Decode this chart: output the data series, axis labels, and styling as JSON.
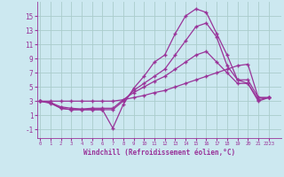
{
  "xlabel": "Windchill (Refroidissement éolien,°C)",
  "bg_color": "#cce8f0",
  "line_color": "#993399",
  "grid_color": "#aacccc",
  "lines": [
    [
      3,
      2.7,
      2,
      1.8,
      1.8,
      1.8,
      1.8,
      -0.8,
      2.5,
      4.8,
      6.5,
      8.5,
      9.5,
      12.5,
      15,
      16,
      15.5,
      12.5,
      9.5,
      6,
      5.5,
      3,
      3.5
    ],
    [
      3,
      2.8,
      2,
      1.8,
      1.8,
      1.8,
      1.8,
      1.8,
      3,
      4.5,
      5.5,
      6.5,
      7.5,
      9.5,
      11.5,
      13.5,
      14,
      12,
      8,
      6,
      6,
      3.5,
      3.5
    ],
    [
      3,
      2.8,
      2.2,
      2.0,
      1.9,
      2.0,
      2.0,
      2.0,
      3.2,
      4.2,
      5.0,
      5.8,
      6.5,
      7.5,
      8.5,
      9.5,
      10.0,
      8.5,
      7.0,
      5.5,
      5.5,
      3.2,
      3.5
    ],
    [
      3,
      3.0,
      3.0,
      3.0,
      3.0,
      3.0,
      3.0,
      3.0,
      3.2,
      3.5,
      3.8,
      4.2,
      4.5,
      5.0,
      5.5,
      6.0,
      6.5,
      7.0,
      7.5,
      8.0,
      8.2,
      3.5,
      3.5
    ]
  ],
  "x_values": [
    0,
    1,
    2,
    3,
    4,
    5,
    6,
    7,
    8,
    9,
    10,
    11,
    12,
    13,
    14,
    15,
    16,
    17,
    18,
    19,
    20,
    21,
    22
  ],
  "xtick_labels": [
    "0",
    "1",
    "2",
    "3",
    "4",
    "5",
    "6",
    "7",
    "8",
    "9",
    "10",
    "11",
    "12",
    "13",
    "14",
    "15",
    "16",
    "17",
    "18",
    "19",
    "20",
    "21",
    "2223"
  ],
  "yticks": [
    -1,
    1,
    3,
    5,
    7,
    9,
    11,
    13,
    15
  ],
  "ylim": [
    -2.2,
    17
  ],
  "xlim": [
    -0.3,
    23.2
  ]
}
